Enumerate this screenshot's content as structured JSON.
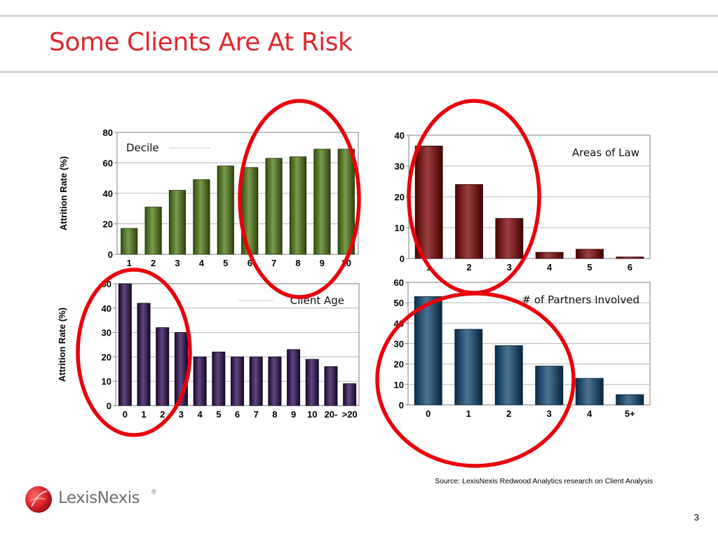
{
  "slide": {
    "title": "Some Clients Are At Risk",
    "source": "Source:  LexisNexis Redwood Analytics research on Client Analysis",
    "page_number": "3",
    "brand": "LexisNexis"
  },
  "colors": {
    "title": "#e0272f",
    "highlight_circle": "#e8000b",
    "green_bar": "#4e7a12",
    "maroon_bar": "#7a0000",
    "purple_bar": "#2b0a52",
    "blue_bar": "#0d4572"
  },
  "chart_data": [
    {
      "id": "decile",
      "type": "bar",
      "annotation": "Decile",
      "ylabel": "Attrition Rate (%)",
      "categories": [
        "1",
        "2",
        "3",
        "4",
        "5",
        "6",
        "7",
        "8",
        "9",
        "10"
      ],
      "values": [
        17,
        31,
        42,
        49,
        58,
        57,
        63,
        64,
        69,
        69
      ],
      "ylim": [
        0,
        80
      ],
      "yticks": [
        0,
        20,
        40,
        60,
        80
      ],
      "grid": true,
      "color": "#4e7a12"
    },
    {
      "id": "areas-of-law",
      "type": "bar",
      "annotation": "Areas of Law",
      "ylabel": "",
      "categories": [
        "1",
        "2",
        "3",
        "4",
        "5",
        "6"
      ],
      "values": [
        36.5,
        24,
        13,
        2,
        3,
        0.5
      ],
      "ylim": [
        0,
        40
      ],
      "yticks": [
        0,
        10,
        20,
        30,
        40
      ],
      "grid": true,
      "color": "#7a0000"
    },
    {
      "id": "client-age",
      "type": "bar",
      "annotation": "Client Age",
      "ylabel": "Attrition Rate (%)",
      "categories": [
        "0",
        "1",
        "2",
        "3",
        "4",
        "5",
        "6",
        "7",
        "8",
        "9",
        "10",
        "20-",
        ">20"
      ],
      "values": [
        50,
        42,
        32,
        30,
        20,
        22,
        20,
        20,
        20,
        23,
        19,
        16,
        9
      ],
      "ylim": [
        0,
        50
      ],
      "yticks": [
        0,
        10,
        20,
        30,
        40,
        50
      ],
      "grid": true,
      "color": "#2b0a52"
    },
    {
      "id": "partners-involved",
      "type": "bar",
      "annotation": "# of Partners Involved",
      "ylabel": "",
      "categories": [
        "0",
        "1",
        "2",
        "3",
        "4",
        "5+"
      ],
      "values": [
        53,
        37,
        29,
        19,
        13,
        5
      ],
      "ylim": [
        0,
        60
      ],
      "yticks": [
        0,
        10,
        20,
        30,
        40,
        50,
        60
      ],
      "grid": true,
      "color": "#0d4572"
    }
  ]
}
